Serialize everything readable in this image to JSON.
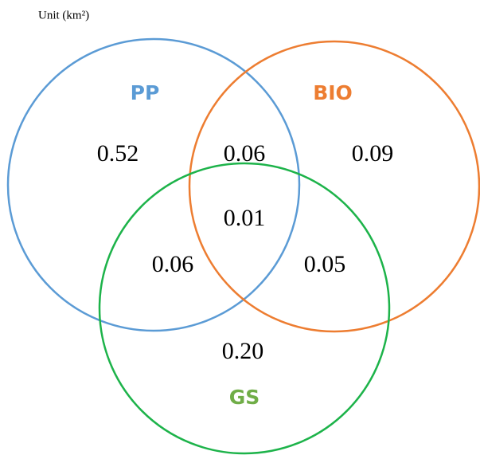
{
  "unit_label": "Unit (km²)",
  "sets": [
    {
      "label": "PP"
    },
    {
      "label": "BIO"
    },
    {
      "label": "GS"
    }
  ],
  "regions": {
    "pp_only": "0.52",
    "pp_bio": "0.06",
    "bio_only": "0.09",
    "all": "0.01",
    "pp_gs": "0.06",
    "bio_gs": "0.05",
    "gs_only": "0.20"
  }
}
